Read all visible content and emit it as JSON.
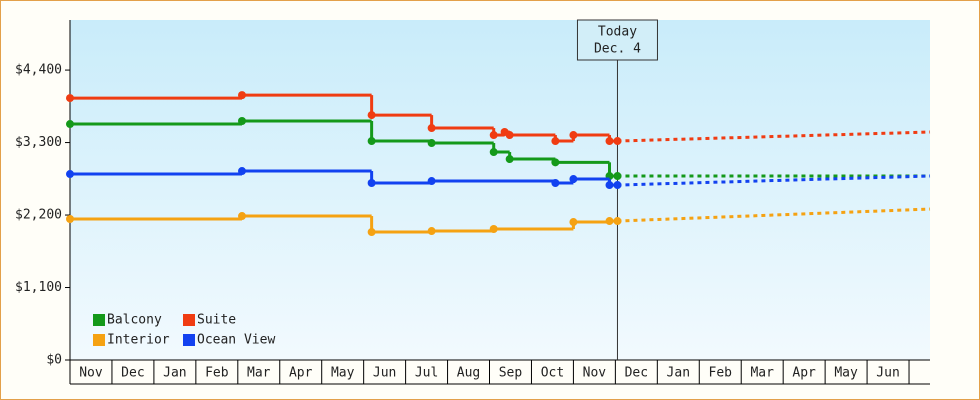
{
  "chart_data": {
    "type": "step-line",
    "categories": [
      "Nov",
      "Dec",
      "Jan",
      "Feb",
      "Mar",
      "Apr",
      "May",
      "Jun",
      "Jul",
      "Aug",
      "Sep",
      "Oct",
      "Nov",
      "Dec",
      "Jan",
      "Feb",
      "Mar",
      "Apr",
      "May",
      "Jun"
    ],
    "xlim": [
      0,
      20.5
    ],
    "ylim": [
      0,
      5160
    ],
    "yticks": [
      {
        "value": 0,
        "label": "$0"
      },
      {
        "value": 1100,
        "label": "$1,100"
      },
      {
        "value": 2200,
        "label": "$2,200"
      },
      {
        "value": 3300,
        "label": "$3,300"
      },
      {
        "value": 4400,
        "label": "$4,400"
      }
    ],
    "annotation": {
      "x": 13.05,
      "lines": [
        "Today",
        "Dec. 4"
      ]
    },
    "legend": "lower left",
    "series": [
      {
        "name": "Balcony",
        "color": "#14991a",
        "x": [
          0,
          4.1,
          7.19,
          8.62,
          10.1,
          10.48,
          11.57,
          12.86,
          13.05
        ],
        "values": [
          3581,
          3627,
          3323,
          3293,
          3156,
          3050,
          3000,
          2792,
          2792
        ],
        "forecast_x": [
          13.05,
          20.5
        ],
        "forecast_values": [
          2792,
          2792
        ]
      },
      {
        "name": "Suite",
        "color": "#f03c12",
        "x": [
          0,
          4.1,
          7.19,
          8.62,
          10.1,
          10.36,
          10.48,
          11.57,
          12.0,
          12.86,
          13.05
        ],
        "values": [
          3975,
          4020,
          3717,
          3520,
          3414,
          3460,
          3414,
          3323,
          3414,
          3323,
          3323
        ],
        "forecast_x": [
          13.05,
          20.5
        ],
        "forecast_values": [
          3323,
          3460
        ]
      },
      {
        "name": "Interior",
        "color": "#f5a212",
        "x": [
          0,
          4.1,
          7.19,
          8.62,
          10.1,
          12.0,
          12.86,
          13.05
        ],
        "values": [
          2140,
          2185,
          1942,
          1957,
          1988,
          2094,
          2109,
          2109
        ],
        "forecast_x": [
          13.05,
          20.5
        ],
        "forecast_values": [
          2109,
          2291
        ]
      },
      {
        "name": "Ocean View",
        "color": "#1242f0",
        "x": [
          0,
          4.1,
          7.19,
          8.62,
          11.57,
          12.0,
          12.86,
          13.05
        ],
        "values": [
          2822,
          2868,
          2686,
          2716,
          2686,
          2746,
          2655,
          2655
        ],
        "forecast_x": [
          13.05,
          20.5
        ],
        "forecast_values": [
          2655,
          2792
        ]
      }
    ]
  }
}
